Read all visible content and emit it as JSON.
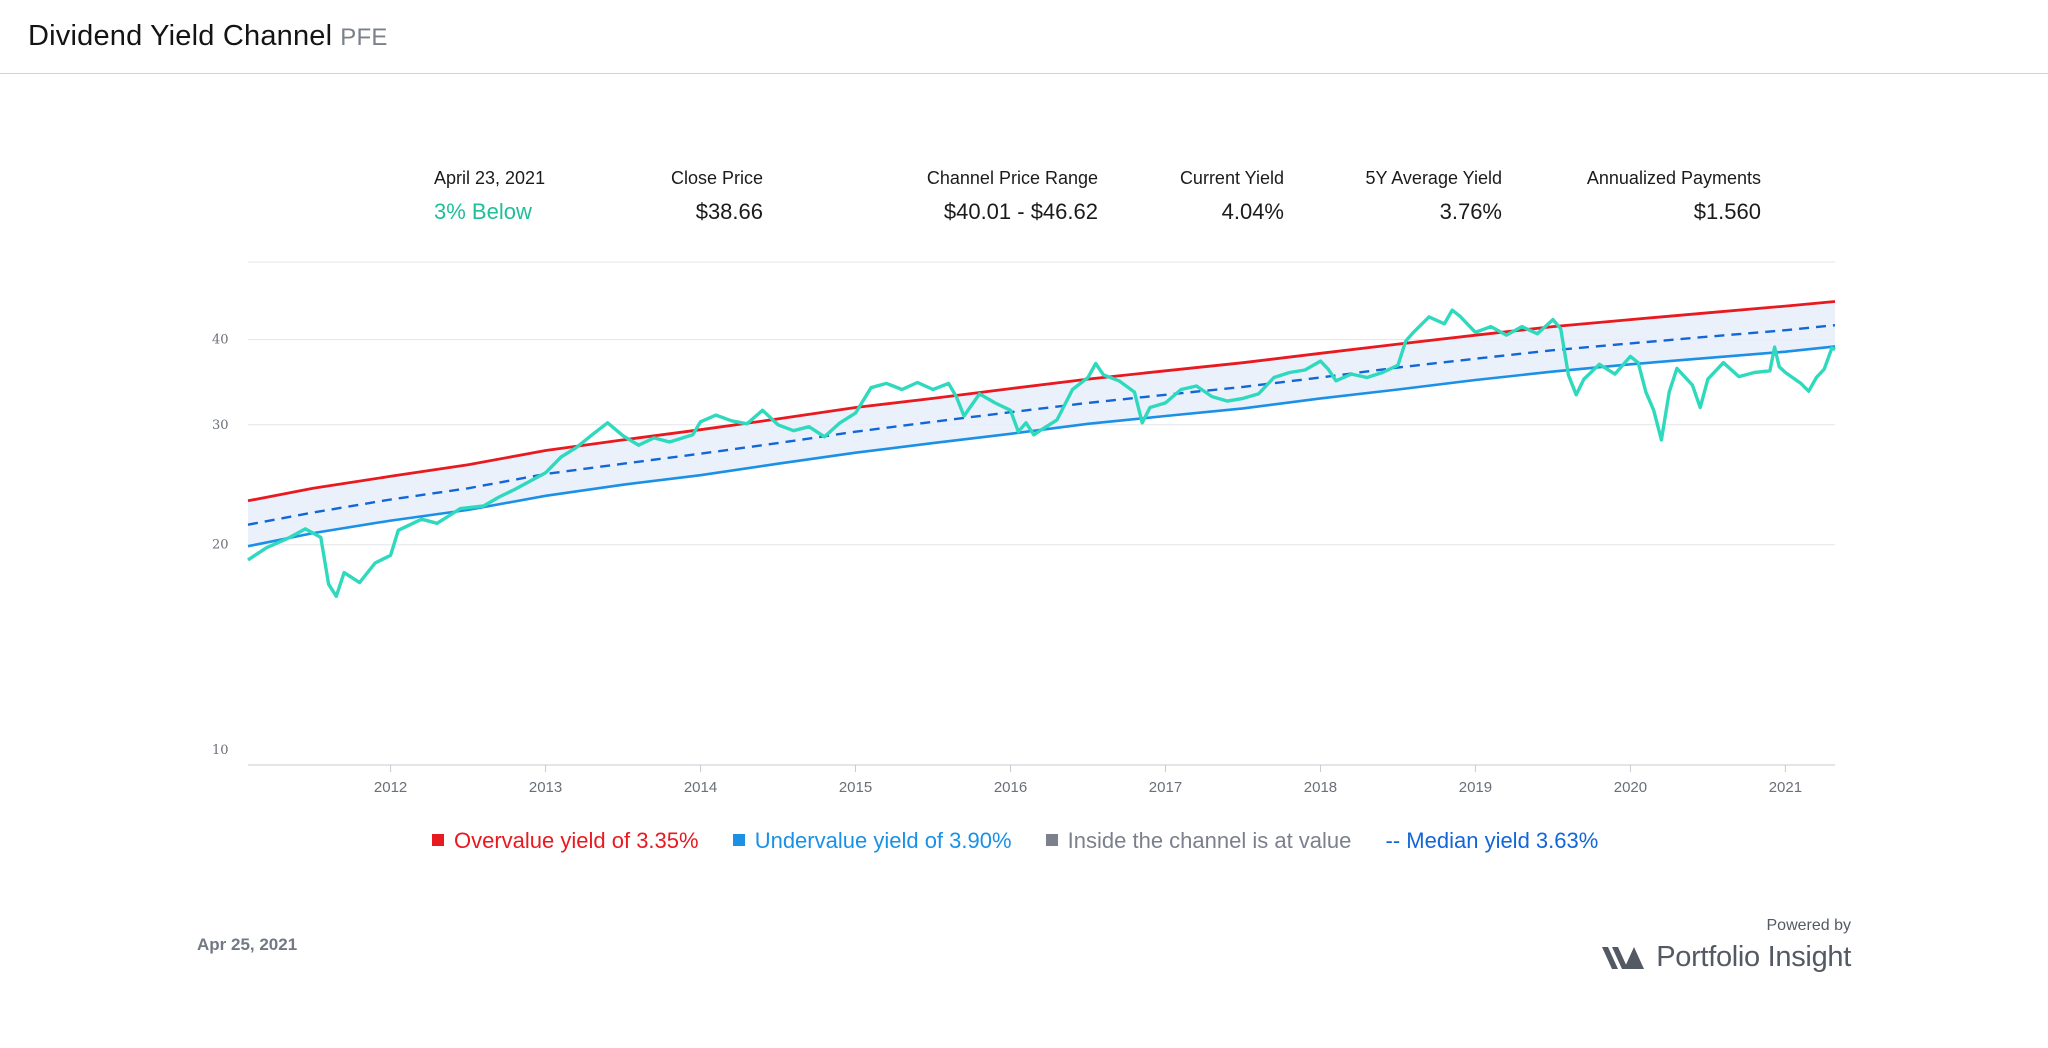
{
  "header": {
    "title": "Dividend Yield Channel",
    "ticker": "PFE"
  },
  "stats": {
    "date_label": "April 23, 2021",
    "status": "3% Below",
    "close_label": "Close Price",
    "close_value": "$38.66",
    "range_label": "Channel Price Range",
    "range_value": "$40.01 - $46.62",
    "current_yield_label": "Current Yield",
    "current_yield_value": "4.04%",
    "avg_yield_label": "5Y Average Yield",
    "avg_yield_value": "3.76%",
    "payments_label": "Annualized Payments",
    "payments_value": "$1.560"
  },
  "legend": {
    "overvalue": "Overvalue yield of 3.35%",
    "undervalue": "Undervalue yield of 3.90%",
    "inside": "Inside the channel is at value",
    "median": "-- Median yield 3.63%"
  },
  "colors": {
    "overvalue": "#e8191f",
    "undervalue": "#1a91e6",
    "median": "#1266d8",
    "inside": "#7b808c",
    "price": "#2fd9bd",
    "channel_fill": "#e6effa",
    "accent": "#1fbf9a"
  },
  "footer": {
    "date": "Apr 25, 2021",
    "powered_by": "Powered by",
    "brand": "Portfolio Insight",
    "brand_icon": "portfolio-insight-logo"
  },
  "chart_data": {
    "type": "line",
    "y_scale": "log",
    "ylim": [
      9.5,
      52
    ],
    "y_ticks": [
      10,
      20,
      30,
      40
    ],
    "xlim": [
      2011.08,
      2021.32
    ],
    "x_ticks": [
      2012,
      2013,
      2014,
      2015,
      2016,
      2017,
      2018,
      2019,
      2020,
      2021
    ],
    "grid": true,
    "legend_position": "bottom",
    "series": [
      {
        "name": "Overvalue yield of 3.35%",
        "style": "solid",
        "points": [
          [
            2011.08,
            23.2
          ],
          [
            2011.5,
            24.2
          ],
          [
            2012.0,
            25.2
          ],
          [
            2012.5,
            26.2
          ],
          [
            2013.0,
            27.5
          ],
          [
            2013.5,
            28.5
          ],
          [
            2014.0,
            29.5
          ],
          [
            2014.5,
            30.6
          ],
          [
            2015.0,
            31.8
          ],
          [
            2015.5,
            32.8
          ],
          [
            2016.0,
            33.9
          ],
          [
            2016.5,
            35.0
          ],
          [
            2017.0,
            36.0
          ],
          [
            2017.5,
            37.0
          ],
          [
            2018.0,
            38.2
          ],
          [
            2018.5,
            39.4
          ],
          [
            2019.0,
            40.6
          ],
          [
            2019.5,
            41.8
          ],
          [
            2020.0,
            42.8
          ],
          [
            2020.5,
            43.8
          ],
          [
            2021.0,
            44.8
          ],
          [
            2021.32,
            45.5
          ]
        ]
      },
      {
        "name": "-- Median yield 3.63%",
        "style": "dashed",
        "points": [
          [
            2011.08,
            21.4
          ],
          [
            2011.5,
            22.3
          ],
          [
            2012.0,
            23.3
          ],
          [
            2012.5,
            24.2
          ],
          [
            2013.0,
            25.4
          ],
          [
            2013.5,
            26.3
          ],
          [
            2014.0,
            27.2
          ],
          [
            2014.5,
            28.2
          ],
          [
            2015.0,
            29.3
          ],
          [
            2015.5,
            30.3
          ],
          [
            2016.0,
            31.3
          ],
          [
            2016.5,
            32.3
          ],
          [
            2017.0,
            33.2
          ],
          [
            2017.5,
            34.1
          ],
          [
            2018.0,
            35.2
          ],
          [
            2018.5,
            36.4
          ],
          [
            2019.0,
            37.5
          ],
          [
            2019.5,
            38.6
          ],
          [
            2020.0,
            39.5
          ],
          [
            2020.5,
            40.4
          ],
          [
            2021.0,
            41.3
          ],
          [
            2021.32,
            42.0
          ]
        ]
      },
      {
        "name": "Undervalue yield of 3.90%",
        "style": "solid",
        "points": [
          [
            2011.08,
            19.9
          ],
          [
            2011.5,
            20.8
          ],
          [
            2012.0,
            21.7
          ],
          [
            2012.5,
            22.5
          ],
          [
            2013.0,
            23.6
          ],
          [
            2013.5,
            24.5
          ],
          [
            2014.0,
            25.3
          ],
          [
            2014.5,
            26.3
          ],
          [
            2015.0,
            27.3
          ],
          [
            2015.5,
            28.2
          ],
          [
            2016.0,
            29.1
          ],
          [
            2016.5,
            30.1
          ],
          [
            2017.0,
            30.9
          ],
          [
            2017.5,
            31.7
          ],
          [
            2018.0,
            32.8
          ],
          [
            2018.5,
            33.8
          ],
          [
            2019.0,
            34.9
          ],
          [
            2019.5,
            35.9
          ],
          [
            2020.0,
            36.8
          ],
          [
            2020.5,
            37.6
          ],
          [
            2021.0,
            38.4
          ],
          [
            2021.32,
            39.1
          ]
        ]
      },
      {
        "name": "Close Price",
        "style": "solid",
        "points": [
          [
            2011.08,
            19.0
          ],
          [
            2011.2,
            19.8
          ],
          [
            2011.35,
            20.5
          ],
          [
            2011.45,
            21.1
          ],
          [
            2011.55,
            20.5
          ],
          [
            2011.6,
            17.5
          ],
          [
            2011.65,
            16.8
          ],
          [
            2011.7,
            18.2
          ],
          [
            2011.8,
            17.6
          ],
          [
            2011.9,
            18.8
          ],
          [
            2012.0,
            19.3
          ],
          [
            2012.05,
            21.0
          ],
          [
            2012.2,
            21.8
          ],
          [
            2012.3,
            21.5
          ],
          [
            2012.45,
            22.6
          ],
          [
            2012.6,
            22.8
          ],
          [
            2012.7,
            23.5
          ],
          [
            2012.8,
            24.1
          ],
          [
            2012.9,
            24.8
          ],
          [
            2013.0,
            25.5
          ],
          [
            2013.1,
            26.9
          ],
          [
            2013.2,
            27.8
          ],
          [
            2013.3,
            29.0
          ],
          [
            2013.4,
            30.2
          ],
          [
            2013.5,
            28.9
          ],
          [
            2013.6,
            28.0
          ],
          [
            2013.7,
            28.7
          ],
          [
            2013.8,
            28.3
          ],
          [
            2013.95,
            29.0
          ],
          [
            2014.0,
            30.3
          ],
          [
            2014.1,
            31.0
          ],
          [
            2014.2,
            30.4
          ],
          [
            2014.3,
            30.1
          ],
          [
            2014.4,
            31.5
          ],
          [
            2014.5,
            30.0
          ],
          [
            2014.6,
            29.4
          ],
          [
            2014.7,
            29.8
          ],
          [
            2014.8,
            28.8
          ],
          [
            2014.9,
            30.2
          ],
          [
            2015.0,
            31.2
          ],
          [
            2015.1,
            34.0
          ],
          [
            2015.2,
            34.5
          ],
          [
            2015.3,
            33.8
          ],
          [
            2015.4,
            34.6
          ],
          [
            2015.5,
            33.8
          ],
          [
            2015.6,
            34.5
          ],
          [
            2015.65,
            33.0
          ],
          [
            2015.7,
            30.9
          ],
          [
            2015.8,
            33.3
          ],
          [
            2015.9,
            32.3
          ],
          [
            2016.0,
            31.5
          ],
          [
            2016.05,
            29.3
          ],
          [
            2016.1,
            30.2
          ],
          [
            2016.15,
            29.0
          ],
          [
            2016.2,
            29.5
          ],
          [
            2016.3,
            30.5
          ],
          [
            2016.4,
            33.8
          ],
          [
            2016.5,
            35.2
          ],
          [
            2016.55,
            36.9
          ],
          [
            2016.6,
            35.5
          ],
          [
            2016.7,
            34.8
          ],
          [
            2016.8,
            33.5
          ],
          [
            2016.85,
            30.2
          ],
          [
            2016.9,
            31.8
          ],
          [
            2017.0,
            32.3
          ],
          [
            2017.1,
            33.8
          ],
          [
            2017.2,
            34.2
          ],
          [
            2017.3,
            33.0
          ],
          [
            2017.4,
            32.5
          ],
          [
            2017.5,
            32.8
          ],
          [
            2017.6,
            33.3
          ],
          [
            2017.7,
            35.2
          ],
          [
            2017.8,
            35.8
          ],
          [
            2017.9,
            36.1
          ],
          [
            2018.0,
            37.2
          ],
          [
            2018.05,
            36.2
          ],
          [
            2018.1,
            34.8
          ],
          [
            2018.2,
            35.6
          ],
          [
            2018.3,
            35.2
          ],
          [
            2018.4,
            35.8
          ],
          [
            2018.5,
            36.7
          ],
          [
            2018.55,
            39.8
          ],
          [
            2018.6,
            41.0
          ],
          [
            2018.7,
            43.2
          ],
          [
            2018.8,
            42.2
          ],
          [
            2018.85,
            44.2
          ],
          [
            2018.9,
            43.3
          ],
          [
            2019.0,
            41.0
          ],
          [
            2019.1,
            41.8
          ],
          [
            2019.2,
            40.6
          ],
          [
            2019.3,
            41.8
          ],
          [
            2019.4,
            40.8
          ],
          [
            2019.5,
            42.8
          ],
          [
            2019.55,
            41.5
          ],
          [
            2019.6,
            35.5
          ],
          [
            2019.65,
            33.2
          ],
          [
            2019.7,
            35.0
          ],
          [
            2019.8,
            36.8
          ],
          [
            2019.9,
            35.6
          ],
          [
            2020.0,
            37.8
          ],
          [
            2020.05,
            37.0
          ],
          [
            2020.1,
            33.5
          ],
          [
            2020.15,
            31.5
          ],
          [
            2020.2,
            28.5
          ],
          [
            2020.25,
            33.5
          ],
          [
            2020.3,
            36.3
          ],
          [
            2020.4,
            34.3
          ],
          [
            2020.45,
            31.8
          ],
          [
            2020.5,
            35.0
          ],
          [
            2020.6,
            37.0
          ],
          [
            2020.7,
            35.3
          ],
          [
            2020.8,
            35.8
          ],
          [
            2020.9,
            36.0
          ],
          [
            2020.93,
            39.0
          ],
          [
            2020.96,
            36.5
          ],
          [
            2021.0,
            35.8
          ],
          [
            2021.1,
            34.5
          ],
          [
            2021.15,
            33.6
          ],
          [
            2021.2,
            35.2
          ],
          [
            2021.25,
            36.2
          ],
          [
            2021.3,
            38.9
          ],
          [
            2021.32,
            38.66
          ]
        ]
      }
    ]
  }
}
